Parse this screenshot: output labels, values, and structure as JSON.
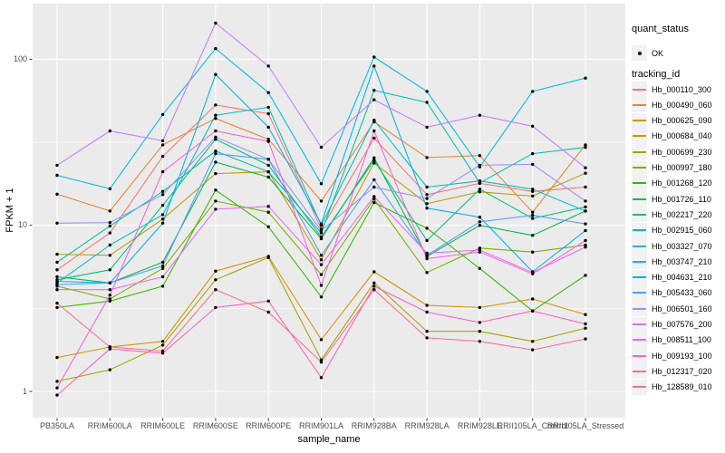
{
  "figure": {
    "panel_bg": "#EBEBEB",
    "grid_color": "#FFFFFF",
    "tick_color": "#333333",
    "tick_label_color": "#4D4D4D",
    "point_color": "#000000",
    "key_bg": "#F2F2F2"
  },
  "legend": {
    "quant_title": "quant_status",
    "quant_items": [
      {
        "label": "OK",
        "marker": "point"
      }
    ],
    "tracking_title": "tracking_id"
  },
  "chart_data": {
    "type": "line",
    "title": "",
    "xlabel": "sample_name",
    "ylabel": "FPKM + 1",
    "y_scale": "log10",
    "y_ticks": [
      1,
      10,
      100
    ],
    "y_minor": [
      3.1623,
      31.623
    ],
    "ylim": [
      0.69,
      216
    ],
    "grid": true,
    "legend_position": "right",
    "x_categories": [
      "PB350LA",
      "RRIM600LA",
      "RRIM600LE",
      "RRIM600SE",
      "RRIM600PE",
      "RRIM901LA",
      "RRIM928BA",
      "RRIM928LA",
      "RRIM928LE",
      "RRII105LA_Control",
      "RRII105LA_Stressed"
    ],
    "series": [
      {
        "name": "Hb_000110_300",
        "color": "#F8766D",
        "values": [
          5.4,
          9,
          26,
          53,
          47,
          9.5,
          33.5,
          15.3,
          17.9,
          16,
          17
        ]
      },
      {
        "name": "Hb_000490_060",
        "color": "#EA8331",
        "values": [
          15.4,
          12.2,
          30.5,
          44,
          33,
          14,
          42,
          25.6,
          26.3,
          12,
          30.5
        ]
      },
      {
        "name": "Hb_000625_090",
        "color": "#D89000",
        "values": [
          1.6,
          1.85,
          2.0,
          5.3,
          6.5,
          2.05,
          5.25,
          3.3,
          3.2,
          3.6,
          2.9
        ]
      },
      {
        "name": "Hb_000684_040",
        "color": "#C09B00",
        "values": [
          6.7,
          6.6,
          10.9,
          20.5,
          21,
          6.2,
          23.7,
          13.5,
          15.9,
          15,
          20.6
        ]
      },
      {
        "name": "Hb_000699_230",
        "color": "#A3A500",
        "values": [
          1.15,
          1.35,
          1.9,
          4.7,
          6.4,
          1.55,
          4.5,
          2.3,
          2.3,
          2.0,
          2.4
        ]
      },
      {
        "name": "Hb_000997_180",
        "color": "#7CAE00",
        "values": [
          4.3,
          3.6,
          5.5,
          14,
          12,
          5.05,
          14.4,
          5.2,
          7.3,
          6.9,
          7.6
        ]
      },
      {
        "name": "Hb_001268_120",
        "color": "#39B600",
        "values": [
          3.2,
          3.5,
          4.3,
          16.3,
          9.8,
          3.7,
          13.7,
          9.6,
          5.5,
          3.05,
          5.0
        ]
      },
      {
        "name": "Hb_001726_110",
        "color": "#00BB4E",
        "values": [
          4.9,
          4.5,
          6.0,
          24,
          19.5,
          8.3,
          25.5,
          6.5,
          10,
          8.7,
          12.2
        ]
      },
      {
        "name": "Hb_002217_220",
        "color": "#00BF7D",
        "values": [
          4.7,
          5.4,
          13.2,
          33,
          23,
          8.5,
          24.6,
          8.1,
          16.5,
          11,
          12.9
        ]
      },
      {
        "name": "Hb_002915_060",
        "color": "#00C1A2",
        "values": [
          6.0,
          9.9,
          16,
          28,
          21,
          9.0,
          65,
          55,
          18,
          27,
          29.5
        ]
      },
      {
        "name": "Hb_003327_070",
        "color": "#00BFC4",
        "values": [
          4.5,
          7.6,
          11.6,
          46,
          51.4,
          10,
          43,
          17,
          18.5,
          16.5,
          12.2
        ]
      },
      {
        "name": "Hb_003747_210",
        "color": "#00B9E7",
        "values": [
          20,
          16.6,
          46.5,
          116,
          63,
          17.8,
          103,
          64,
          22.5,
          64,
          77
        ]
      },
      {
        "name": "Hb_004631_210",
        "color": "#00B0F6",
        "values": [
          4.6,
          4.5,
          10.3,
          81,
          39,
          10.2,
          91,
          12.7,
          11.2,
          5.25,
          9.3
        ]
      },
      {
        "name": "Hb_005433_060",
        "color": "#4E9DFF",
        "values": [
          4.4,
          4.5,
          5.7,
          27,
          25,
          6.6,
          18.8,
          6.6,
          10.5,
          11.5,
          10.2
        ]
      },
      {
        "name": "Hb_006501_160",
        "color": "#9590FF",
        "values": [
          10.3,
          10.4,
          15.3,
          34,
          25,
          9.3,
          17,
          14.5,
          23,
          23.3,
          14
        ]
      },
      {
        "name": "Hb_007576_200",
        "color": "#C77CFF",
        "values": [
          23,
          37,
          32.3,
          165,
          91,
          29.5,
          57,
          39,
          46,
          39.5,
          22.2
        ]
      },
      {
        "name": "Hb_008511_100",
        "color": "#E76BF3",
        "values": [
          4.1,
          4.1,
          4.9,
          12.5,
          13,
          5.8,
          14.9,
          6.8,
          7.1,
          5.2,
          7.4
        ]
      },
      {
        "name": "Hb_009193_100",
        "color": "#FA62DB",
        "values": [
          1.05,
          3.8,
          21,
          37,
          32,
          4.35,
          37,
          6.3,
          6.9,
          5.1,
          8.1
        ]
      },
      {
        "name": "Hb_012317_020",
        "color": "#FF62BC",
        "values": [
          0.95,
          1.8,
          1.7,
          3.2,
          3.5,
          1.21,
          4.3,
          3.0,
          2.6,
          3.05,
          2.55
        ]
      },
      {
        "name": "Hb_128589_010",
        "color": "#FF6C91",
        "values": [
          3.4,
          1.85,
          1.75,
          4.1,
          3.0,
          1.5,
          4.1,
          2.1,
          2.0,
          1.78,
          2.07
        ]
      }
    ]
  }
}
